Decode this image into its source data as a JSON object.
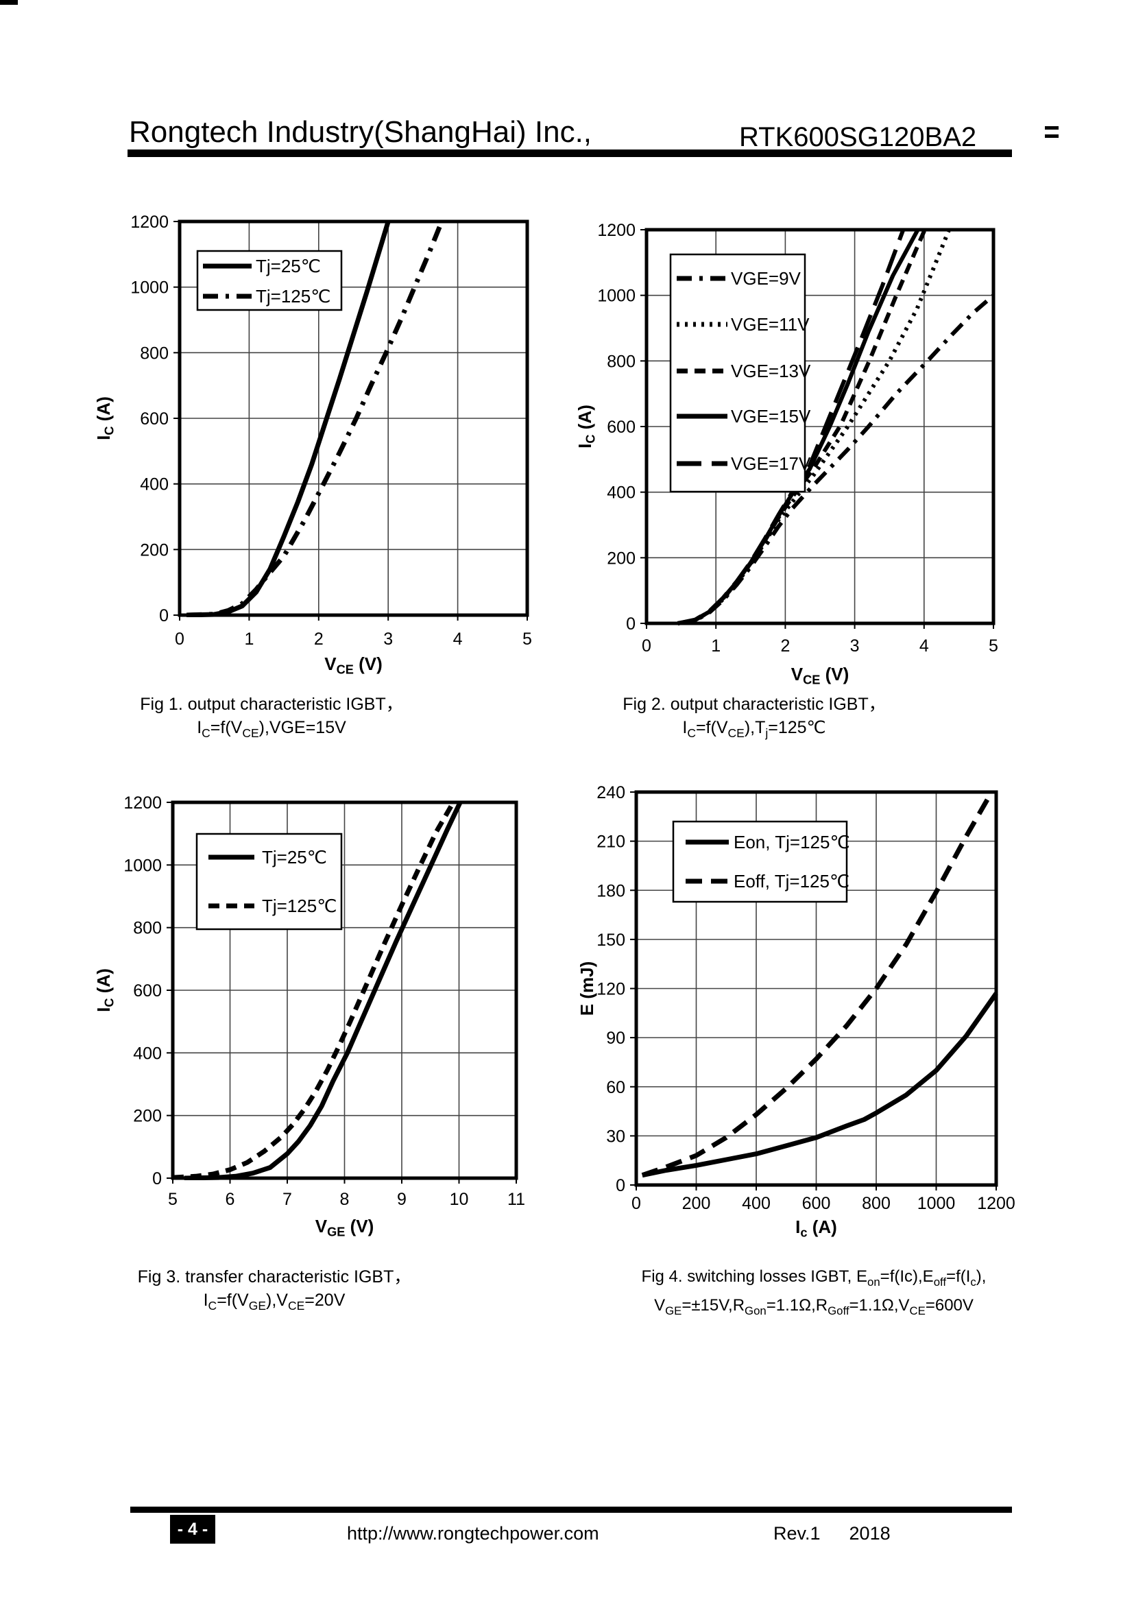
{
  "page": {
    "header": {
      "company": "Rongtech Industry(ShangHai) Inc.,",
      "part_number": "RTK600SG120BA2"
    },
    "footer": {
      "page_label": "- 4 -",
      "url": "http://www.rongtechpower.com",
      "revision": "Rev.1",
      "year": "2018"
    },
    "ink": "#000000",
    "grid_color": "#444444"
  },
  "chart_data": [
    {
      "id": "fig1",
      "type": "line",
      "caption": [
        "Fig 1. output characteristic IGBT，",
        "I~C~=f(V~CE~),VGE=15V"
      ],
      "xlabel": "V~CE~ (V)",
      "ylabel": "I~C~ (A)",
      "xlim": [
        0,
        5
      ],
      "ylim": [
        0,
        1200
      ],
      "xticks": [
        0,
        1,
        2,
        3,
        4,
        5
      ],
      "yticks": [
        0,
        200,
        400,
        600,
        800,
        1000,
        1200
      ],
      "grid": true,
      "legend_position": "upper-left",
      "series": [
        {
          "name": "Tj=25℃",
          "style": "solid",
          "x": [
            0.1,
            0.5,
            0.7,
            0.9,
            1.1,
            1.3,
            1.5,
            1.7,
            1.9,
            2.1,
            2.3,
            2.5,
            2.7,
            2.9,
            3.0
          ],
          "y": [
            0,
            2,
            10,
            28,
            70,
            140,
            240,
            345,
            460,
            590,
            720,
            855,
            990,
            1130,
            1200
          ]
        },
        {
          "name": "Tj=125℃",
          "style": "dashdot",
          "x": [
            0.1,
            0.5,
            0.7,
            0.9,
            1.1,
            1.3,
            1.5,
            1.8,
            2.07,
            2.3,
            2.54,
            2.75,
            2.97,
            3.18,
            3.38,
            3.58,
            3.77
          ],
          "y": [
            0,
            3,
            14,
            35,
            78,
            130,
            180,
            290,
            400,
            495,
            600,
            700,
            800,
            900,
            1000,
            1100,
            1200
          ]
        }
      ]
    },
    {
      "id": "fig2",
      "type": "line",
      "caption": [
        "Fig 2. output characteristic IGBT，",
        "I~C~=f(V~CE~),T~j~=125℃"
      ],
      "xlabel": "V~CE~ (V)",
      "ylabel": "I~C~ (A)",
      "xlim": [
        0,
        5
      ],
      "ylim": [
        0,
        1200
      ],
      "xticks": [
        0,
        1,
        2,
        3,
        4,
        5
      ],
      "yticks": [
        0,
        200,
        400,
        600,
        800,
        1000,
        1200
      ],
      "grid": true,
      "legend_position": "upper-left",
      "series": [
        {
          "name": "VGE=9V",
          "style": "dashdot",
          "x": [
            0.45,
            0.7,
            0.9,
            1.1,
            1.3,
            1.5,
            1.7,
            1.9,
            2.1,
            2.4,
            2.9,
            3.2,
            3.6,
            4.05,
            4.4,
            4.7,
            5.0
          ],
          "y": [
            0,
            9,
            32,
            70,
            118,
            172,
            232,
            295,
            350,
            420,
            530,
            600,
            700,
            800,
            880,
            945,
            1000
          ]
        },
        {
          "name": "VGE=11V",
          "style": "dot",
          "x": [
            0.45,
            0.7,
            0.9,
            1.1,
            1.3,
            1.5,
            1.7,
            1.9,
            2.1,
            2.4,
            2.9,
            3.5,
            3.9,
            4.15,
            4.36
          ],
          "y": [
            0,
            10,
            34,
            73,
            122,
            180,
            245,
            315,
            370,
            450,
            600,
            800,
            960,
            1090,
            1200
          ]
        },
        {
          "name": "VGE=13V",
          "style": "dash",
          "x": [
            0.45,
            0.7,
            0.9,
            1.1,
            1.3,
            1.5,
            1.7,
            1.9,
            2.1,
            2.4,
            2.8,
            3.21,
            3.6,
            4.01
          ],
          "y": [
            0,
            10,
            35,
            75,
            125,
            183,
            250,
            322,
            385,
            470,
            605,
            800,
            1000,
            1200
          ]
        },
        {
          "name": "VGE=15V",
          "style": "solid",
          "x": [
            0.45,
            0.7,
            0.9,
            1.1,
            1.3,
            1.5,
            1.7,
            1.9,
            2.1,
            2.35,
            2.64,
            2.9,
            3.2,
            3.55,
            3.91
          ],
          "y": [
            0,
            10,
            35,
            76,
            126,
            185,
            253,
            327,
            395,
            470,
            600,
            730,
            890,
            1060,
            1200
          ]
        },
        {
          "name": "VGE=17V",
          "style": "ldash",
          "x": [
            0.45,
            0.7,
            0.9,
            1.1,
            1.3,
            1.5,
            1.7,
            1.9,
            2.1,
            2.35,
            2.58,
            2.85,
            3.1,
            3.4,
            3.7
          ],
          "y": [
            0,
            11,
            36,
            77,
            128,
            187,
            256,
            330,
            400,
            480,
            600,
            740,
            870,
            1030,
            1200
          ]
        }
      ]
    },
    {
      "id": "fig3",
      "type": "line",
      "caption": [
        "Fig 3. transfer characteristic IGBT，",
        "I~C~=f(V~GE~),V~CE~=20V"
      ],
      "xlabel": "V~GE~ (V)",
      "ylabel": "I~C~ (A)",
      "xlim": [
        5,
        11
      ],
      "ylim": [
        0,
        1200
      ],
      "xticks": [
        5,
        6,
        7,
        8,
        9,
        10,
        11
      ],
      "yticks": [
        0,
        200,
        400,
        600,
        800,
        1000,
        1200
      ],
      "grid": true,
      "legend_position": "upper-left",
      "series": [
        {
          "name": "Tj=25℃",
          "style": "solid",
          "x": [
            5.2,
            5.8,
            6.1,
            6.4,
            6.7,
            7.0,
            7.2,
            7.4,
            7.6,
            7.8,
            8.05,
            8.3,
            8.6,
            8.9,
            9.2,
            9.5,
            9.8,
            10.02
          ],
          "y": [
            0,
            2,
            6,
            16,
            34,
            78,
            118,
            168,
            230,
            310,
            400,
            505,
            630,
            755,
            875,
            995,
            1115,
            1200
          ]
        },
        {
          "name": "Tj=125℃",
          "style": "dash",
          "x": [
            5.0,
            5.4,
            5.7,
            6.0,
            6.3,
            6.6,
            6.9,
            7.1,
            7.3,
            7.5,
            7.7,
            7.9,
            8.1,
            8.4,
            8.7,
            9.0,
            9.3,
            9.6,
            9.9
          ],
          "y": [
            2,
            6,
            13,
            27,
            50,
            86,
            132,
            172,
            220,
            278,
            345,
            420,
            500,
            625,
            750,
            872,
            990,
            1105,
            1200
          ]
        }
      ]
    },
    {
      "id": "fig4",
      "type": "line",
      "caption": [
        "Fig 4. switching losses IGBT, E~on~=f(Ic),E~off~=f(I~c~),",
        "V~GE~=±15V,R~Gon~=1.1Ω,R~Goff~=1.1Ω,V~CE~=600V"
      ],
      "xlabel": "I~c~ (A)",
      "ylabel": "E (mJ)",
      "xlim": [
        0,
        1200
      ],
      "ylim": [
        0,
        240
      ],
      "xticks": [
        0,
        200,
        400,
        600,
        800,
        1000,
        1200
      ],
      "yticks": [
        0,
        30,
        60,
        90,
        120,
        150,
        180,
        210,
        240
      ],
      "grid": true,
      "legend_position": "upper-left",
      "series": [
        {
          "name": "Eon, Tj=125℃",
          "style": "solid",
          "x": [
            20,
            100,
            200,
            300,
            400,
            500,
            600,
            700,
            760,
            800,
            900,
            1000,
            1100,
            1200
          ],
          "y": [
            6,
            9,
            12,
            15.5,
            19,
            24,
            29,
            36,
            40,
            44,
            55,
            70,
            91,
            117
          ]
        },
        {
          "name": "Eoff, Tj=125℃",
          "style": "mdash",
          "x": [
            20,
            100,
            200,
            300,
            400,
            500,
            600,
            700,
            800,
            900,
            1000,
            1100,
            1185
          ],
          "y": [
            6,
            11,
            18,
            29,
            43,
            59,
            77,
            97,
            120,
            147,
            179,
            213,
            240
          ]
        }
      ]
    }
  ]
}
